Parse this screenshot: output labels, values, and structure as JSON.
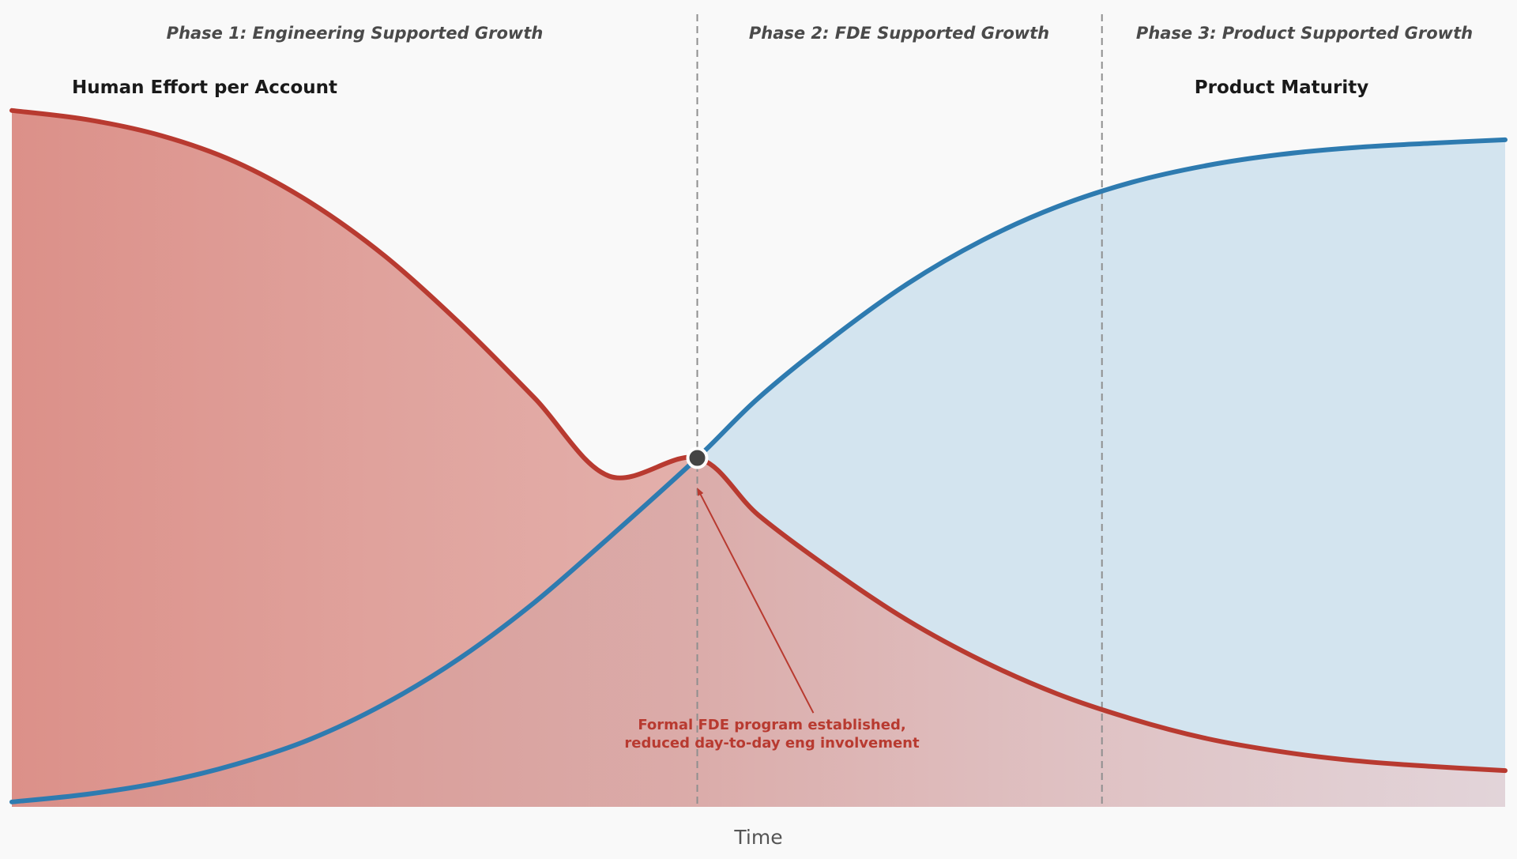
{
  "chart_data": {
    "type": "line",
    "title": "",
    "xlabel": "Time",
    "ylabel": "",
    "xlim": [
      0,
      1
    ],
    "ylim": [
      0,
      1
    ],
    "grid": false,
    "phases": [
      {
        "label": "Phase 1: Engineering Supported Growth",
        "start": 0.0,
        "end": 0.459
      },
      {
        "label": "Phase 2: FDE Supported Growth",
        "start": 0.459,
        "end": 0.73
      },
      {
        "label": "Phase 3: Product Supported Growth",
        "start": 0.73,
        "end": 1.0
      }
    ],
    "series": [
      {
        "name": "Human Effort per Account",
        "color": "#b83a30",
        "fill": "#d9837b",
        "x": [
          0.0,
          0.05,
          0.1,
          0.15,
          0.2,
          0.25,
          0.3,
          0.35,
          0.4,
          0.459,
          0.5,
          0.55,
          0.6,
          0.65,
          0.7,
          0.75,
          0.8,
          0.85,
          0.9,
          0.95,
          1.0
        ],
        "values": [
          0.998,
          0.985,
          0.962,
          0.924,
          0.866,
          0.789,
          0.693,
          0.586,
          0.474,
          0.5,
          0.418,
          0.338,
          0.267,
          0.209,
          0.162,
          0.126,
          0.098,
          0.079,
          0.066,
          0.058,
          0.052
        ]
      },
      {
        "name": "Product Maturity",
        "color": "#2e7bb0",
        "fill": "#d3e4ef",
        "x": [
          0.0,
          0.05,
          0.1,
          0.15,
          0.2,
          0.25,
          0.3,
          0.35,
          0.4,
          0.459,
          0.5,
          0.55,
          0.6,
          0.65,
          0.7,
          0.75,
          0.8,
          0.85,
          0.9,
          0.95,
          1.0
        ],
        "values": [
          0.007,
          0.018,
          0.035,
          0.061,
          0.097,
          0.148,
          0.213,
          0.293,
          0.386,
          0.5,
          0.586,
          0.673,
          0.75,
          0.812,
          0.86,
          0.895,
          0.919,
          0.935,
          0.945,
          0.951,
          0.956
        ]
      }
    ],
    "crossover": {
      "x": 0.459,
      "y": 0.5
    },
    "annotation": {
      "lines": [
        "Formal FDE program established,",
        "reduced day-to-day eng involvement"
      ],
      "x": 0.505,
      "y": 0.13
    },
    "series_labels": {
      "effort": "Human Effort per Account",
      "maturity": "Product Maturity"
    }
  }
}
